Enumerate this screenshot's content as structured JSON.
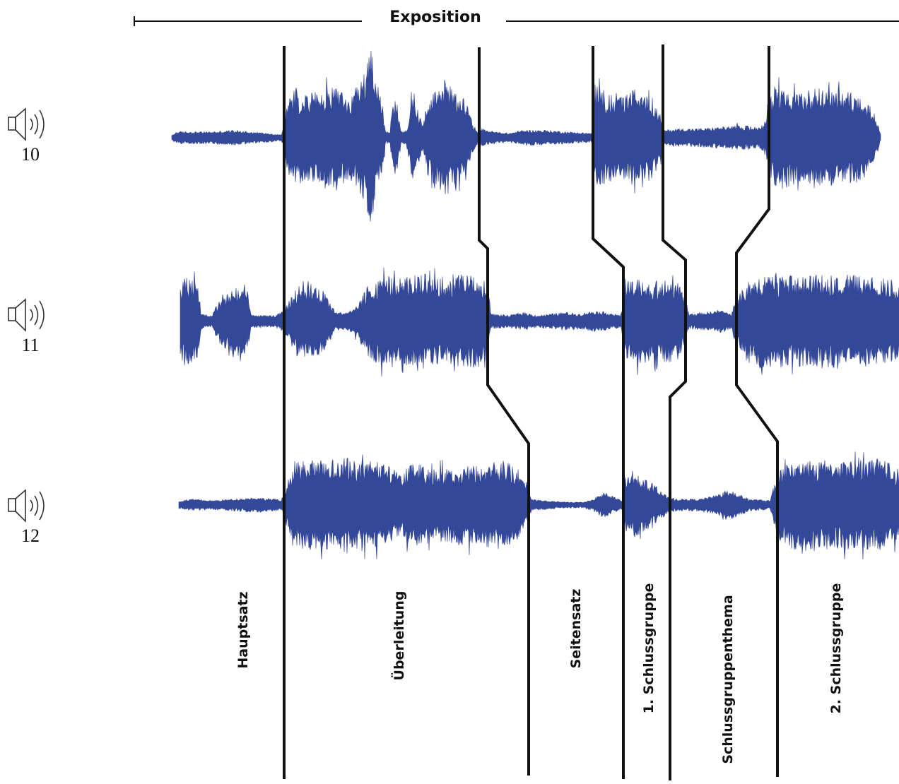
{
  "header": {
    "exposition_label": "Exposition"
  },
  "tracks": [
    {
      "number": "10",
      "icon": "speaker-icon"
    },
    {
      "number": "11",
      "icon": "speaker-icon"
    },
    {
      "number": "12",
      "icon": "speaker-icon"
    }
  ],
  "sections": [
    {
      "label": "Hauptsatz"
    },
    {
      "label": "Überleitung"
    },
    {
      "label": "Seitensatz"
    },
    {
      "label": "1. Schlussgruppe"
    },
    {
      "label": "Schlussgruppenthema"
    },
    {
      "label": "2. Schlussgruppe"
    }
  ],
  "colors": {
    "waveform": "#34489a",
    "lines": "#111111"
  }
}
